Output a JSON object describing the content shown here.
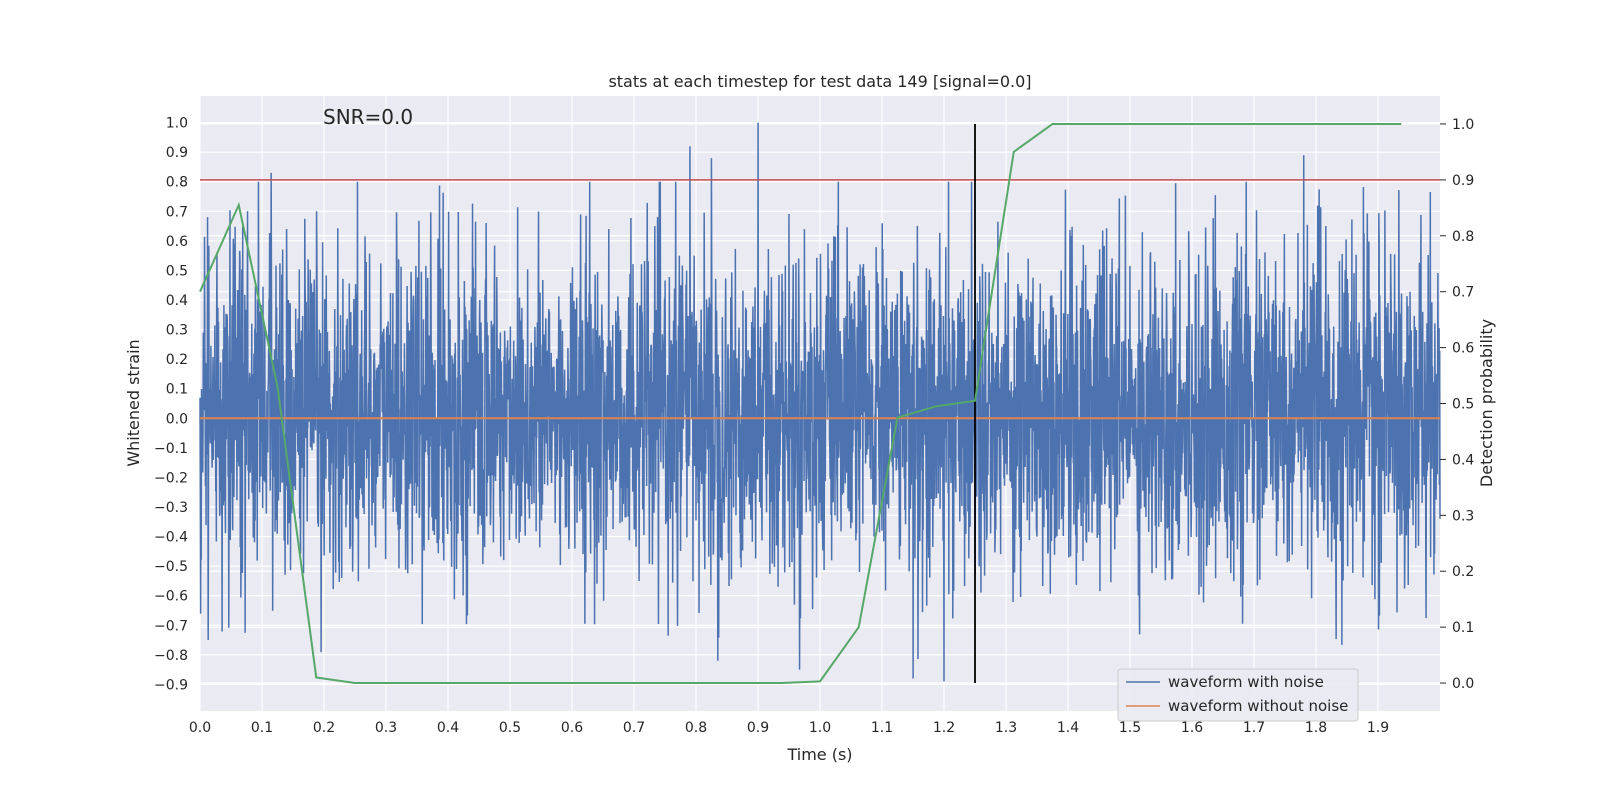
{
  "chart_data": {
    "type": "line",
    "title": "stats at each timestep for test data 149 [signal=0.0]",
    "xlabel": "Time (s)",
    "ylabel_left": "Whitened strain",
    "ylabel_right": "Detection probability",
    "annotation": "SNR=0.0",
    "xlim": [
      0.0,
      2.0
    ],
    "ylim_left": [
      -0.99,
      1.09
    ],
    "ylim_right": [
      -0.05,
      1.05
    ],
    "x_ticks": [
      "0.0",
      "0.1",
      "0.2",
      "0.3",
      "0.4",
      "0.5",
      "0.6",
      "0.7",
      "0.8",
      "0.9",
      "1.0",
      "1.1",
      "1.2",
      "1.3",
      "1.4",
      "1.5",
      "1.6",
      "1.7",
      "1.8",
      "1.9"
    ],
    "y_ticks_left": [
      "1.0",
      "0.9",
      "0.8",
      "0.7",
      "0.6",
      "0.5",
      "0.4",
      "0.3",
      "0.2",
      "0.1",
      "0.0",
      "−0.1",
      "−0.2",
      "−0.3",
      "−0.4",
      "−0.5",
      "−0.6",
      "−0.7",
      "−0.8",
      "−0.9"
    ],
    "y_ticks_right": [
      "1.0",
      "0.9",
      "0.8",
      "0.7",
      "0.6",
      "0.5",
      "0.4",
      "0.3",
      "0.2",
      "0.1",
      "0.0"
    ],
    "grid": true,
    "legend": {
      "placement": "lower-right",
      "entries": [
        {
          "label": "waveform with noise",
          "color": "#4c72b0"
        },
        {
          "label": "waveform without noise",
          "color": "#dd8452"
        }
      ]
    },
    "series": [
      {
        "name": "waveform with noise",
        "axis": "left",
        "color": "#4c72b0",
        "style": "noise",
        "sample_count": 4096,
        "range": [
          -0.9,
          1.0
        ],
        "peaks": [
          {
            "x": 0.013,
            "y": -0.75
          },
          {
            "x": 0.115,
            "y": 0.83
          },
          {
            "x": 0.79,
            "y": 0.92
          },
          {
            "x": 0.825,
            "y": 0.88
          },
          {
            "x": 0.835,
            "y": -0.82
          },
          {
            "x": 0.9,
            "y": 1.0
          },
          {
            "x": 1.15,
            "y": -0.88
          },
          {
            "x": 1.2,
            "y": -0.89
          },
          {
            "x": 1.78,
            "y": 0.89
          }
        ]
      },
      {
        "name": "waveform without noise",
        "axis": "left",
        "color": "#dd8452",
        "x": [
          0.0,
          2.0
        ],
        "y": [
          0.0,
          0.0
        ]
      },
      {
        "name": "",
        "axis": "right",
        "color": "#55a868",
        "x": [
          0.0,
          0.0625,
          0.125,
          0.1875,
          0.25,
          0.9375,
          1.0,
          1.0625,
          1.125,
          1.1875,
          1.25,
          1.3125,
          1.375,
          1.9375
        ],
        "y": [
          0.7,
          0.855,
          0.53,
          0.01,
          0.0,
          0.0,
          0.003,
          0.1,
          0.475,
          0.495,
          0.505,
          0.95,
          1.0,
          1.0
        ]
      }
    ],
    "threshold_line": {
      "axis": "right",
      "y": 0.9,
      "color": "#c44e52"
    },
    "vertical_marker": {
      "x": 1.25,
      "y_range_right": [
        0.0,
        1.0
      ],
      "color": "#000000"
    }
  }
}
